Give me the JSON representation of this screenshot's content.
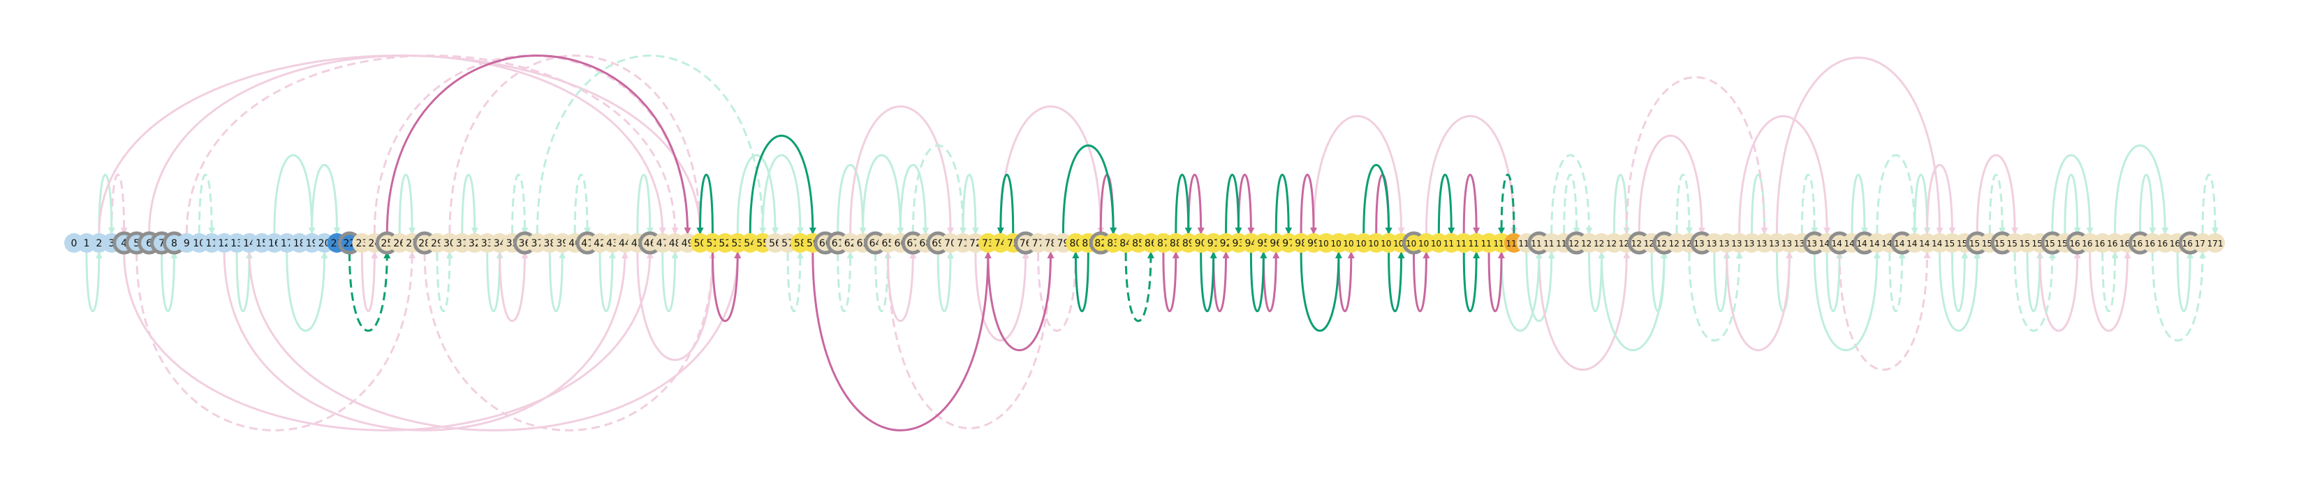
{
  "diagram": {
    "node_labels": [
      "0",
      "1",
      "2",
      "3",
      "4",
      "5",
      "6",
      "7",
      "8",
      "9",
      "10",
      "11",
      "12",
      "13",
      "14",
      "15",
      "16",
      "17",
      "18",
      "19",
      "20",
      "21",
      "22",
      "23",
      "24",
      "25",
      "26",
      "27",
      "28",
      "29",
      "30",
      "31",
      "32",
      "33",
      "34",
      "35",
      "36",
      "37",
      "38",
      "39",
      "40",
      "41",
      "42",
      "43",
      "44",
      "45",
      "46",
      "47",
      "48",
      "49",
      "50",
      "51",
      "52",
      "53",
      "54",
      "55",
      "56",
      "57",
      "58",
      "59",
      "60",
      "61",
      "62",
      "63",
      "64",
      "65",
      "66",
      "67",
      "68",
      "69",
      "70",
      "71",
      "72",
      "73",
      "74",
      "75",
      "76",
      "77",
      "78",
      "79",
      "80",
      "81",
      "82",
      "83",
      "84",
      "85",
      "86",
      "87",
      "88",
      "89",
      "90",
      "91",
      "92",
      "93",
      "94",
      "95",
      "96",
      "97",
      "98",
      "99",
      "100",
      "101",
      "102",
      "103",
      "104",
      "105",
      "106",
      "107",
      "108",
      "109",
      "110",
      "111",
      "112",
      "113",
      "114",
      "115",
      "116",
      "117",
      "118",
      "119",
      "120",
      "121",
      "122",
      "123",
      "124",
      "125",
      "126",
      "127",
      "128",
      "129",
      "130",
      "131",
      "132",
      "133",
      "134",
      "135",
      "136",
      "137",
      "138",
      "139",
      "140",
      "141",
      "142",
      "143",
      "144",
      "145",
      "146",
      "147",
      "148",
      "149",
      "150",
      "151",
      "152",
      "153",
      "154",
      "155",
      "156",
      "157",
      "158",
      "159",
      "160",
      "161",
      "162",
      "163",
      "164",
      "165",
      "166",
      "167",
      "168",
      "169",
      "170",
      "171"
    ],
    "node_colors": {
      "light_blue": "#b9d8ee",
      "blue": "#3d8bd4",
      "yellow": "#f6e04a",
      "beige": "#efe2c2",
      "orange": "#f0a830",
      "gray_ring": "#8e8e8e"
    },
    "node_color_ranges": [
      {
        "from": 0,
        "to": 20,
        "color": "light_blue"
      },
      {
        "from": 21,
        "to": 22,
        "color": "blue"
      },
      {
        "from": 23,
        "to": 49,
        "color": "beige"
      },
      {
        "from": 50,
        "to": 55,
        "color": "yellow"
      },
      {
        "from": 56,
        "to": 57,
        "color": "beige"
      },
      {
        "from": 58,
        "to": 59,
        "color": "yellow"
      },
      {
        "from": 60,
        "to": 72,
        "color": "beige"
      },
      {
        "from": 73,
        "to": 75,
        "color": "yellow"
      },
      {
        "from": 76,
        "to": 79,
        "color": "beige"
      },
      {
        "from": 80,
        "to": 86,
        "color": "yellow"
      },
      {
        "from": 87,
        "to": 114,
        "color": "yellow"
      },
      {
        "from": 115,
        "to": 115,
        "color": "orange"
      },
      {
        "from": 116,
        "to": 171,
        "color": "beige"
      }
    ],
    "gray_ring_nodes": [
      4,
      5,
      6,
      7,
      8,
      22,
      25,
      28,
      36,
      41,
      46,
      60,
      61,
      64,
      67,
      69,
      76,
      82,
      107,
      117,
      120,
      125,
      127,
      130,
      139,
      141,
      143,
      146,
      152,
      154,
      158,
      160,
      165,
      169
    ],
    "edge_colors": {
      "strong_green": "#0b9e72",
      "strong_pink": "#c8679f",
      "faint_green": "#bfeedd",
      "faint_pink": "#f1cfe0"
    },
    "edges": [
      {
        "s": 25,
        "t": 49,
        "c": "strong_pink",
        "d": false
      },
      {
        "s": 59,
        "t": 73,
        "c": "strong_pink",
        "d": false
      },
      {
        "s": 75,
        "t": 74,
        "c": "strong_green",
        "d": false
      },
      {
        "s": 81,
        "t": 80,
        "c": "strong_green",
        "d": false
      },
      {
        "s": 82,
        "t": 83,
        "c": "strong_pink",
        "d": false
      },
      {
        "s": 87,
        "t": 88,
        "c": "strong_pink",
        "d": false
      },
      {
        "s": 89,
        "t": 90,
        "c": "strong_pink",
        "d": false
      },
      {
        "s": 91,
        "t": 92,
        "c": "strong_pink",
        "d": false
      },
      {
        "s": 93,
        "t": 94,
        "c": "strong_pink",
        "d": false
      },
      {
        "s": 95,
        "t": 96,
        "c": "strong_pink",
        "d": false
      },
      {
        "s": 98,
        "t": 99,
        "c": "strong_pink",
        "d": false
      },
      {
        "s": 101,
        "t": 102,
        "c": "strong_pink",
        "d": false
      },
      {
        "s": 104,
        "t": 105,
        "c": "strong_pink",
        "d": false
      },
      {
        "s": 107,
        "t": 108,
        "c": "strong_pink",
        "d": false
      },
      {
        "s": 111,
        "t": 112,
        "c": "strong_pink",
        "d": false
      },
      {
        "s": 113,
        "t": 114,
        "c": "strong_pink",
        "d": false
      },
      {
        "s": 115,
        "t": 114,
        "c": "strong_green",
        "d": true
      },
      {
        "s": 22,
        "t": 25,
        "c": "strong_green",
        "d": true
      },
      {
        "s": 51,
        "t": 50,
        "c": "strong_green",
        "d": false
      },
      {
        "s": 51,
        "t": 53,
        "c": "strong_pink",
        "d": false
      },
      {
        "s": 54,
        "t": 59,
        "c": "strong_green",
        "d": false
      },
      {
        "s": 73,
        "t": 78,
        "c": "strong_pink",
        "d": false
      },
      {
        "s": 79,
        "t": 83,
        "c": "strong_green",
        "d": false
      },
      {
        "s": 84,
        "t": 86,
        "c": "strong_green",
        "d": true
      },
      {
        "s": 88,
        "t": 89,
        "c": "strong_green",
        "d": false
      },
      {
        "s": 90,
        "t": 91,
        "c": "strong_green",
        "d": false
      },
      {
        "s": 92,
        "t": 93,
        "c": "strong_green",
        "d": false
      },
      {
        "s": 94,
        "t": 95,
        "c": "strong_green",
        "d": false
      },
      {
        "s": 96,
        "t": 97,
        "c": "strong_green",
        "d": false
      },
      {
        "s": 98,
        "t": 101,
        "c": "strong_green",
        "d": false
      },
      {
        "s": 103,
        "t": 105,
        "c": "strong_green",
        "d": false
      },
      {
        "s": 105,
        "t": 106,
        "c": "strong_green",
        "d": false
      },
      {
        "s": 109,
        "t": 110,
        "c": "strong_green",
        "d": false
      },
      {
        "s": 111,
        "t": 112,
        "c": "strong_green",
        "d": false
      },
      {
        "s": 3,
        "t": 4,
        "c": "faint_pink",
        "d": true
      },
      {
        "s": 1,
        "t": 2,
        "c": "faint_green",
        "d": false
      },
      {
        "s": 2,
        "t": 3,
        "c": "faint_green",
        "d": false
      },
      {
        "s": 7,
        "t": 8,
        "c": "faint_green",
        "d": false
      },
      {
        "s": 10,
        "t": 11,
        "c": "faint_green",
        "d": true
      },
      {
        "s": 13,
        "t": 14,
        "c": "faint_green",
        "d": false
      },
      {
        "s": 16,
        "t": 19,
        "c": "faint_green",
        "d": false
      },
      {
        "s": 17,
        "t": 20,
        "c": "faint_green",
        "d": false
      },
      {
        "s": 19,
        "t": 21,
        "c": "faint_green",
        "d": false
      },
      {
        "s": 23,
        "t": 24,
        "c": "faint_pink",
        "d": false
      },
      {
        "s": 26,
        "t": 27,
        "c": "faint_green",
        "d": false
      },
      {
        "s": 29,
        "t": 30,
        "c": "faint_green",
        "d": true
      },
      {
        "s": 31,
        "t": 32,
        "c": "faint_green",
        "d": false
      },
      {
        "s": 33,
        "t": 34,
        "c": "faint_green",
        "d": false
      },
      {
        "s": 35,
        "t": 36,
        "c": "faint_green",
        "d": true
      },
      {
        "s": 38,
        "t": 39,
        "c": "faint_green",
        "d": false
      },
      {
        "s": 40,
        "t": 41,
        "c": "faint_green",
        "d": true
      },
      {
        "s": 42,
        "t": 43,
        "c": "faint_green",
        "d": false
      },
      {
        "s": 45,
        "t": 46,
        "c": "faint_green",
        "d": false
      },
      {
        "s": 47,
        "t": 48,
        "c": "faint_green",
        "d": false
      },
      {
        "s": 53,
        "t": 56,
        "c": "faint_green",
        "d": false
      },
      {
        "s": 57,
        "t": 58,
        "c": "faint_green",
        "d": true
      },
      {
        "s": 61,
        "t": 63,
        "c": "faint_green",
        "d": false
      },
      {
        "s": 64,
        "t": 65,
        "c": "faint_green",
        "d": true
      },
      {
        "s": 66,
        "t": 68,
        "c": "faint_green",
        "d": false
      },
      {
        "s": 69,
        "t": 70,
        "c": "faint_green",
        "d": false
      },
      {
        "s": 71,
        "t": 72,
        "c": "faint_green",
        "d": false
      },
      {
        "s": 116,
        "t": 118,
        "c": "faint_green",
        "d": false
      },
      {
        "s": 119,
        "t": 120,
        "c": "faint_green",
        "d": true
      },
      {
        "s": 121,
        "t": 122,
        "c": "faint_green",
        "d": false
      },
      {
        "s": 123,
        "t": 124,
        "c": "faint_green",
        "d": false
      },
      {
        "s": 126,
        "t": 127,
        "c": "faint_green",
        "d": false
      },
      {
        "s": 128,
        "t": 129,
        "c": "faint_green",
        "d": true
      },
      {
        "s": 131,
        "t": 132,
        "c": "faint_green",
        "d": false
      },
      {
        "s": 134,
        "t": 135,
        "c": "faint_green",
        "d": false
      },
      {
        "s": 136,
        "t": 137,
        "c": "faint_green",
        "d": false
      },
      {
        "s": 138,
        "t": 139,
        "c": "faint_green",
        "d": true
      },
      {
        "s": 140,
        "t": 141,
        "c": "faint_green",
        "d": false
      },
      {
        "s": 142,
        "t": 143,
        "c": "faint_green",
        "d": false
      },
      {
        "s": 145,
        "t": 146,
        "c": "faint_green",
        "d": true
      },
      {
        "s": 147,
        "t": 148,
        "c": "faint_green",
        "d": false
      },
      {
        "s": 150,
        "t": 151,
        "c": "faint_green",
        "d": false
      },
      {
        "s": 153,
        "t": 154,
        "c": "faint_green",
        "d": true
      },
      {
        "s": 156,
        "t": 157,
        "c": "faint_green",
        "d": false
      },
      {
        "s": 159,
        "t": 160,
        "c": "faint_green",
        "d": false
      },
      {
        "s": 162,
        "t": 163,
        "c": "faint_green",
        "d": true
      },
      {
        "s": 165,
        "t": 166,
        "c": "faint_green",
        "d": false
      },
      {
        "s": 168,
        "t": 169,
        "c": "faint_green",
        "d": false
      },
      {
        "s": 170,
        "t": 171,
        "c": "faint_green",
        "d": true
      },
      {
        "s": 5,
        "t": 27,
        "c": "faint_pink",
        "d": true
      },
      {
        "s": 9,
        "t": 48,
        "c": "faint_pink",
        "d": true
      },
      {
        "s": 14,
        "t": 53,
        "c": "faint_pink",
        "d": false
      },
      {
        "s": 30,
        "t": 50,
        "c": "faint_pink",
        "d": true
      },
      {
        "s": 34,
        "t": 36,
        "c": "faint_pink",
        "d": false
      },
      {
        "s": 62,
        "t": 70,
        "c": "faint_pink",
        "d": false
      },
      {
        "s": 65,
        "t": 78,
        "c": "faint_pink",
        "d": true
      },
      {
        "s": 74,
        "t": 82,
        "c": "faint_pink",
        "d": false
      },
      {
        "s": 77,
        "t": 80,
        "c": "faint_pink",
        "d": true
      },
      {
        "s": 99,
        "t": 106,
        "c": "faint_pink",
        "d": false
      },
      {
        "s": 117,
        "t": 124,
        "c": "faint_pink",
        "d": false
      },
      {
        "s": 124,
        "t": 135,
        "c": "faint_pink",
        "d": true
      },
      {
        "s": 132,
        "t": 137,
        "c": "faint_pink",
        "d": false
      },
      {
        "s": 136,
        "t": 149,
        "c": "faint_pink",
        "d": false
      },
      {
        "s": 141,
        "t": 148,
        "c": "faint_pink",
        "d": true
      },
      {
        "s": 148,
        "t": 150,
        "c": "faint_pink",
        "d": false
      },
      {
        "s": 157,
        "t": 160,
        "c": "faint_pink",
        "d": false
      },
      {
        "s": 6,
        "t": 47,
        "c": "faint_pink",
        "d": false
      },
      {
        "s": 4,
        "t": 46,
        "c": "faint_pink",
        "d": false
      },
      {
        "s": 2,
        "t": 50,
        "c": "faint_pink",
        "d": false
      },
      {
        "s": 12,
        "t": 44,
        "c": "faint_pink",
        "d": false
      },
      {
        "s": 24,
        "t": 49,
        "c": "faint_pink",
        "d": true
      },
      {
        "s": 28,
        "t": 51,
        "c": "faint_pink",
        "d": true
      },
      {
        "s": 37,
        "t": 55,
        "c": "faint_green",
        "d": true
      },
      {
        "s": 45,
        "t": 51,
        "c": "faint_pink",
        "d": false
      },
      {
        "s": 55,
        "t": 58,
        "c": "faint_green",
        "d": false
      },
      {
        "s": 61,
        "t": 62,
        "c": "faint_green",
        "d": true
      },
      {
        "s": 63,
        "t": 66,
        "c": "faint_green",
        "d": false
      },
      {
        "s": 65,
        "t": 67,
        "c": "faint_pink",
        "d": false
      },
      {
        "s": 67,
        "t": 71,
        "c": "faint_green",
        "d": true
      },
      {
        "s": 72,
        "t": 76,
        "c": "faint_pink",
        "d": false
      },
      {
        "s": 108,
        "t": 115,
        "c": "faint_pink",
        "d": false
      },
      {
        "s": 114,
        "t": 117,
        "c": "faint_green",
        "d": false
      },
      {
        "s": 118,
        "t": 121,
        "c": "faint_green",
        "d": true
      },
      {
        "s": 122,
        "t": 127,
        "c": "faint_green",
        "d": false
      },
      {
        "s": 125,
        "t": 130,
        "c": "faint_pink",
        "d": false
      },
      {
        "s": 129,
        "t": 133,
        "c": "faint_green",
        "d": true
      },
      {
        "s": 133,
        "t": 140,
        "c": "faint_pink",
        "d": false
      },
      {
        "s": 139,
        "t": 144,
        "c": "faint_green",
        "d": false
      },
      {
        "s": 144,
        "t": 147,
        "c": "faint_green",
        "d": true
      },
      {
        "s": 149,
        "t": 152,
        "c": "faint_green",
        "d": false
      },
      {
        "s": 152,
        "t": 155,
        "c": "faint_pink",
        "d": false
      },
      {
        "s": 155,
        "t": 158,
        "c": "faint_green",
        "d": true
      },
      {
        "s": 158,
        "t": 161,
        "c": "faint_green",
        "d": false
      },
      {
        "s": 161,
        "t": 164,
        "c": "faint_pink",
        "d": false
      },
      {
        "s": 163,
        "t": 167,
        "c": "faint_green",
        "d": false
      },
      {
        "s": 166,
        "t": 170,
        "c": "faint_green",
        "d": true
      }
    ]
  }
}
